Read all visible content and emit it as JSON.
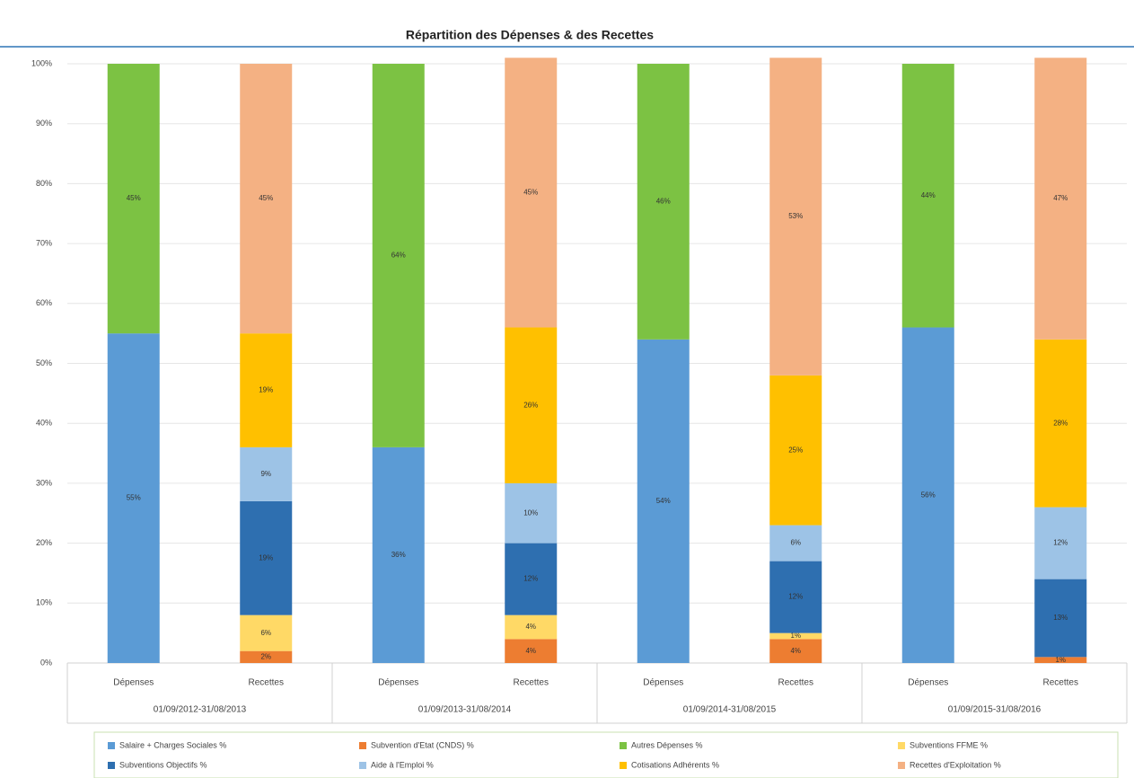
{
  "chart_data": {
    "type": "stacked_bar",
    "title": "Répartition des Dépenses & des Recettes",
    "categories": [
      "Dépenses",
      "Recettes",
      "Dépenses",
      "Recettes",
      "Dépenses",
      "Recettes",
      "Dépenses",
      "Recettes"
    ],
    "groups": [
      "01/09/2012-31/08/2013",
      "01/09/2013-31/08/2014",
      "01/09/2014-31/08/2015",
      "01/09/2015-31/08/2016"
    ],
    "ylim": [
      0,
      100
    ],
    "yticks": [
      {
        "value": 0,
        "label": "0%"
      },
      {
        "value": 10,
        "label": "10%"
      },
      {
        "value": 20,
        "label": "20%"
      },
      {
        "value": 30,
        "label": "30%"
      },
      {
        "value": 40,
        "label": "40%"
      },
      {
        "value": 50,
        "label": "50%"
      },
      {
        "value": 60,
        "label": "60%"
      },
      {
        "value": 70,
        "label": "70%"
      },
      {
        "value": 80,
        "label": "80%"
      },
      {
        "value": 90,
        "label": "90%"
      },
      {
        "value": 100,
        "label": "100%"
      }
    ],
    "grid": true,
    "legend": "bottom",
    "series": [
      {
        "name": "Salaire + Charges Sociales %",
        "color": "#5b9bd5",
        "values": [
          55,
          null,
          36,
          null,
          54,
          null,
          56,
          null
        ],
        "value_labels": [
          "55%",
          null,
          "36%",
          null,
          "54%",
          null,
          "56%",
          null
        ]
      },
      {
        "name": "Subvention d'Etat (CNDS) %",
        "color": "#ed7d31",
        "values": [
          null,
          2,
          null,
          4,
          null,
          4,
          null,
          1
        ],
        "value_labels": [
          null,
          "2%",
          null,
          "4%",
          null,
          "4%",
          null,
          "1%"
        ]
      },
      {
        "name": "Autres Dépenses %",
        "color": "#7cc243",
        "values": [
          45,
          null,
          64,
          null,
          46,
          null,
          44,
          null
        ],
        "value_labels": [
          "45%",
          null,
          "64%",
          null,
          "46%",
          null,
          "44%",
          null
        ]
      },
      {
        "name": "Subventions FFME %",
        "color": "#ffd966",
        "values": [
          null,
          6,
          null,
          4,
          null,
          1,
          null,
          null
        ],
        "value_labels": [
          null,
          "6%",
          null,
          "4%",
          null,
          "1%",
          null,
          null
        ]
      },
      {
        "name": "Subventions Objectifs %",
        "color": "#2e6fb0",
        "values": [
          null,
          19,
          null,
          12,
          null,
          12,
          null,
          13
        ],
        "value_labels": [
          null,
          "19%",
          null,
          "12%",
          null,
          "12%",
          null,
          "13%"
        ]
      },
      {
        "name": "Aide à l'Emploi %",
        "color": "#9dc3e6",
        "values": [
          null,
          9,
          null,
          10,
          null,
          6,
          null,
          12
        ],
        "value_labels": [
          null,
          "9%",
          null,
          "10%",
          null,
          "6%",
          null,
          "12%"
        ]
      },
      {
        "name": "Cotisations Adhérents %",
        "color": "#ffc000",
        "values": [
          null,
          19,
          null,
          26,
          null,
          25,
          null,
          28
        ],
        "value_labels": [
          null,
          "19%",
          null,
          "26%",
          null,
          "25%",
          null,
          "28%"
        ]
      },
      {
        "name": "Recettes d'Exploitation %",
        "color": "#f4b183",
        "values": [
          null,
          45,
          null,
          45,
          null,
          53,
          null,
          47
        ],
        "value_labels": [
          null,
          "45%",
          null,
          "45%",
          null,
          "53%",
          null,
          "47%"
        ]
      }
    ]
  }
}
